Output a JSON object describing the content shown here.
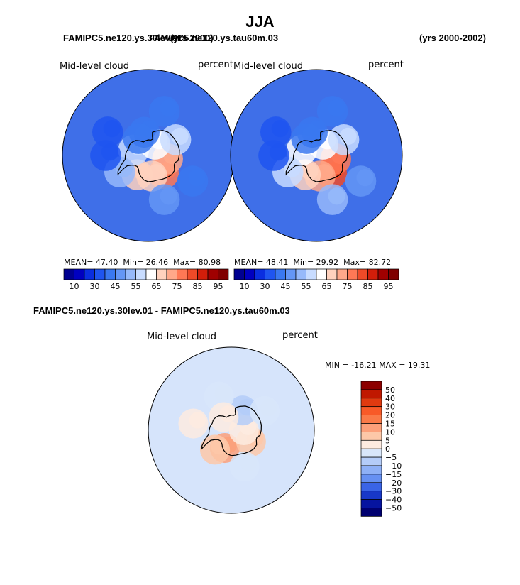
{
  "header": {
    "title": "JJA",
    "case_left": "FAMIPC5.ne120.ys.30lev.01",
    "case_right_overlap": "FAMIPC5.ne120.ys.tau60m.03",
    "years_overlap": "(yrs 2000)",
    "years_right": "(yrs 2000-2002)"
  },
  "chart_data": [
    {
      "type": "heatmap",
      "name": "top-left-map",
      "projection": "south-polar-stereographic",
      "left_label": "Mid-level cloud",
      "right_label": "percent",
      "stats": {
        "mean_label": "MEAN=",
        "mean": "47.40",
        "min_label": "Min=",
        "min": "26.46",
        "max_label": "Max=",
        "max": "80.98"
      },
      "blobs": [
        {
          "lon": 40,
          "lat": -72,
          "value": 78
        },
        {
          "lon": 80,
          "lat": -75,
          "value": 74
        },
        {
          "lon": 10,
          "lat": -74,
          "value": 68
        },
        {
          "lon": -30,
          "lat": -73,
          "value": 66
        },
        {
          "lon": -110,
          "lat": -78,
          "value": 58
        },
        {
          "lon": 150,
          "lat": -80,
          "value": 60
        },
        {
          "lon": 120,
          "lat": -66,
          "value": 56
        },
        {
          "lon": -60,
          "lat": -65,
          "value": 54
        },
        {
          "lon": -170,
          "lat": -72,
          "value": 42
        },
        {
          "lon": -150,
          "lat": -75,
          "value": 40
        },
        {
          "lon": -90,
          "lat": -58,
          "value": 36
        },
        {
          "lon": -120,
          "lat": -55,
          "value": 34
        },
        {
          "lon": 20,
          "lat": -55,
          "value": 48
        },
        {
          "lon": 60,
          "lat": -52,
          "value": 44
        },
        {
          "lon": 160,
          "lat": -55,
          "value": 40
        }
      ]
    },
    {
      "type": "heatmap",
      "name": "top-right-map",
      "projection": "south-polar-stereographic",
      "left_label": "Mid-level cloud",
      "right_label": "percent",
      "stats": {
        "mean_label": "MEAN=",
        "mean": "48.41",
        "min_label": "Min=",
        "min": "29.92",
        "max_label": "Max=",
        "max": "82.72"
      },
      "blobs": [
        {
          "lon": 40,
          "lat": -72,
          "value": 80
        },
        {
          "lon": 80,
          "lat": -75,
          "value": 76
        },
        {
          "lon": 10,
          "lat": -74,
          "value": 70
        },
        {
          "lon": -30,
          "lat": -73,
          "value": 68
        },
        {
          "lon": -110,
          "lat": -78,
          "value": 60
        },
        {
          "lon": 150,
          "lat": -80,
          "value": 62
        },
        {
          "lon": 120,
          "lat": -66,
          "value": 58
        },
        {
          "lon": -60,
          "lat": -65,
          "value": 56
        },
        {
          "lon": -170,
          "lat": -72,
          "value": 44
        },
        {
          "lon": -150,
          "lat": -75,
          "value": 40
        },
        {
          "lon": -90,
          "lat": -58,
          "value": 38
        },
        {
          "lon": -120,
          "lat": -55,
          "value": 36
        },
        {
          "lon": 20,
          "lat": -55,
          "value": 50
        },
        {
          "lon": 60,
          "lat": -52,
          "value": 46
        },
        {
          "lon": 160,
          "lat": -55,
          "value": 42
        }
      ]
    },
    {
      "type": "heatmap",
      "name": "difference-map",
      "projection": "south-polar-stereographic",
      "title": "FAMIPC5.ne120.ys.30lev.01 - FAMIPC5.ne120.ys.tau60m.03",
      "left_label": "Mid-level cloud",
      "right_label": "percent",
      "stats": {
        "min_label": "MIN =",
        "min": "-16.21",
        "max_label": "MAX =",
        "max": "19.31"
      },
      "blobs": [
        {
          "lon": -20,
          "lat": -75,
          "value": 12
        },
        {
          "lon": -40,
          "lat": -70,
          "value": 9
        },
        {
          "lon": 60,
          "lat": -72,
          "value": 6
        },
        {
          "lon": 90,
          "lat": -80,
          "value": 4
        },
        {
          "lon": -100,
          "lat": -60,
          "value": 4
        },
        {
          "lon": 150,
          "lat": -72,
          "value": -6
        },
        {
          "lon": 120,
          "lat": -60,
          "value": -4
        },
        {
          "lon": -160,
          "lat": -62,
          "value": -3
        },
        {
          "lon": 20,
          "lat": -60,
          "value": -3
        },
        {
          "lon": -150,
          "lat": -78,
          "value": 3
        }
      ]
    }
  ],
  "colorbar_abs": {
    "levels": [
      10,
      20,
      30,
      40,
      45,
      50,
      55,
      60,
      65,
      70,
      75,
      80,
      85,
      90,
      95
    ],
    "labels": [
      "10",
      "30",
      "45",
      "55",
      "65",
      "75",
      "85",
      "95"
    ],
    "colors": [
      "#000090",
      "#0000c0",
      "#0a2ee0",
      "#1f55f0",
      "#3a78f0",
      "#6496f5",
      "#96b9fa",
      "#c8dcff",
      "#ffffff",
      "#ffd2be",
      "#ffa88a",
      "#ff7855",
      "#f04a28",
      "#d21e0a",
      "#a00000",
      "#800000"
    ]
  },
  "colorbar_diff": {
    "labels": [
      "50",
      "40",
      "30",
      "20",
      "15",
      "10",
      "5",
      "0",
      "−5",
      "−10",
      "−15",
      "−20",
      "−30",
      "−40",
      "−50"
    ],
    "colors": [
      "#8c0000",
      "#c01800",
      "#e03a10",
      "#f85a28",
      "#fa7a48",
      "#fca07a",
      "#fdc8a8",
      "#fdebe0",
      "#d8e6fa",
      "#b4ccf8",
      "#8eb0f6",
      "#6690f2",
      "#3a64e6",
      "#1838c8",
      "#0614a0",
      "#000070"
    ]
  }
}
